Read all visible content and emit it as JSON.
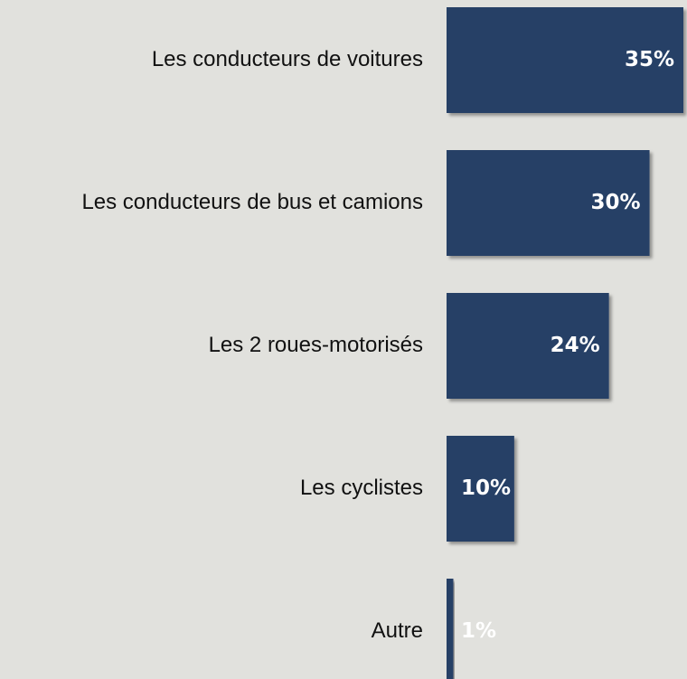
{
  "chart_data": {
    "type": "hbar",
    "categories": [
      "Les conducteurs de voitures",
      "Les conducteurs de bus et camions",
      "Les 2 roues-motorisés",
      "Les cyclistes",
      "Autre"
    ],
    "values": [
      35,
      30,
      24,
      10,
      1
    ],
    "value_labels": [
      "35%",
      "30%",
      "24%",
      "10%",
      "1%"
    ],
    "color": "#263f66"
  }
}
